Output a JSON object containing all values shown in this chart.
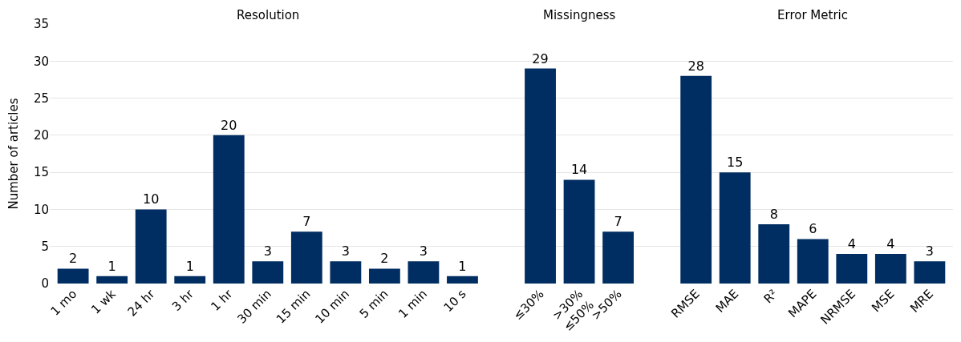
{
  "chart_data": {
    "type": "bar",
    "ylabel": "Number of articles",
    "categories": [
      "1 mo",
      "1 wk",
      "24 hr",
      "3 hr",
      "1 hr",
      "30 min",
      "15 min",
      "10 min",
      "5 min",
      "1 min",
      "10 s",
      null,
      "≤30%",
      ">30%\n≤50%",
      ">50%",
      null,
      "RMSE",
      "MAE",
      "R²",
      "MAPE",
      "NRMSE",
      "MSE",
      "MRE"
    ],
    "values": [
      2,
      1,
      10,
      1,
      20,
      3,
      7,
      3,
      2,
      3,
      1,
      null,
      29,
      14,
      7,
      null,
      28,
      15,
      8,
      6,
      4,
      4,
      3
    ],
    "color": "#002d62",
    "annotations": [
      "Resolution",
      "Missingness",
      "Error Metric"
    ],
    "ylim": [
      0,
      35
    ],
    "yticks": [
      0,
      5,
      10,
      15,
      20,
      25,
      30,
      35
    ],
    "grid": "y",
    "data_labels": true
  }
}
